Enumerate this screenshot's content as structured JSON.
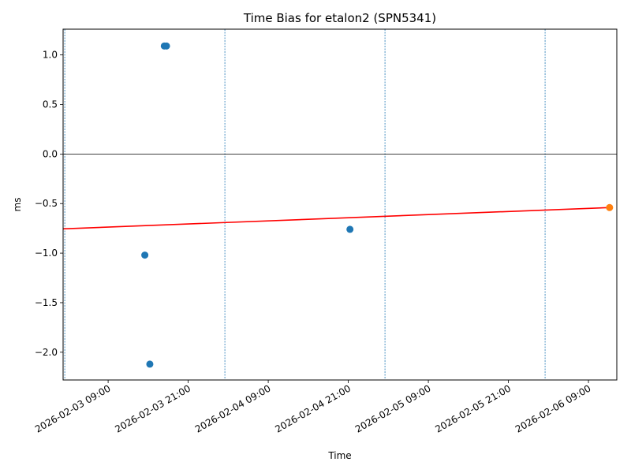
{
  "chart_data": {
    "type": "scatter",
    "title": "Time Bias for etalon2 (SPN5341)",
    "xlabel": "Time",
    "ylabel": "ms",
    "x_axis_type": "datetime",
    "xlim": [
      "2026-02-03 02:15",
      "2026-02-06 13:15"
    ],
    "ylim": [
      -2.28,
      1.26
    ],
    "x_ticks": [
      "2026-02-03 09:00",
      "2026-02-03 21:00",
      "2026-02-04 09:00",
      "2026-02-04 21:00",
      "2026-02-05 09:00",
      "2026-02-05 21:00",
      "2026-02-06 09:00"
    ],
    "y_ticks": [
      -2.0,
      -1.5,
      -1.0,
      -0.5,
      0.0,
      0.5,
      1.0
    ],
    "y_tick_labels": [
      "−2.0",
      "−1.5",
      "−1.0",
      "−0.5",
      "0.0",
      "0.5",
      "1.0"
    ],
    "series": [
      {
        "color": "#1f77b4",
        "points": [
          {
            "x": "2026-02-03 14:30",
            "y": -1.02
          },
          {
            "x": "2026-02-03 15:15",
            "y": -2.12
          },
          {
            "x": "2026-02-03 17:25",
            "y": 1.09
          },
          {
            "x": "2026-02-03 17:45",
            "y": 1.09
          },
          {
            "x": "2026-02-04 21:15",
            "y": -0.76
          }
        ]
      },
      {
        "color": "#ff7f0e",
        "points": [
          {
            "x": "2026-02-06 12:10",
            "y": -0.54
          }
        ]
      }
    ],
    "trend_line": {
      "color": "#ff0000",
      "start": {
        "x": "2026-02-03 02:15",
        "y": -0.755
      },
      "end": {
        "x": "2026-02-06 12:10",
        "y": -0.54
      }
    },
    "horizontal_reference": {
      "y": 0.0,
      "color": "#000000"
    },
    "vertical_reference_lines": {
      "color": "#1f77b4",
      "style": "dashed",
      "x": [
        "2026-02-03 02:30",
        "2026-02-04 02:30",
        "2026-02-05 02:30",
        "2026-02-06 02:30"
      ]
    },
    "grid": false,
    "legend": "none"
  }
}
